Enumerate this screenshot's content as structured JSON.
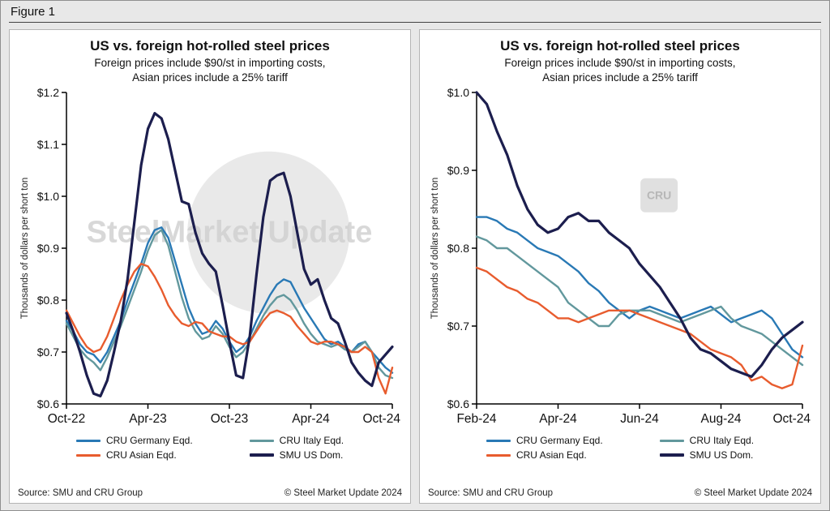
{
  "figure_label": "Figure 1",
  "panel_footer": {
    "source": "Source: SMU and CRU Group",
    "copyright": "© Steel Market Update 2024"
  },
  "watermarks": {
    "steel": "SteelMarket Update",
    "cru": "CRU"
  },
  "colors": {
    "germany": "#2979b5",
    "italy": "#62989d",
    "asian": "#e85c2e",
    "smu": "#1c1e4e",
    "axis": "#000000",
    "watermark": "#d7d7d7"
  },
  "chart_data": [
    {
      "type": "line",
      "title": "US vs. foreign hot-rolled steel prices",
      "subtitle": "Foreign prices include $90/st in importing costs,\nAsian prices include a 25% tariff",
      "ylabel": "Thousands of dollars per short ton",
      "xlim": [
        0,
        24
      ],
      "ylim": [
        0.6,
        1.2
      ],
      "grid": false,
      "legend_position": "bottom",
      "watermark": "steel-market",
      "yticks": [
        {
          "v": 0.6,
          "label": "$0.6"
        },
        {
          "v": 0.7,
          "label": "$0.7"
        },
        {
          "v": 0.8,
          "label": "$0.8"
        },
        {
          "v": 0.9,
          "label": "$0.9"
        },
        {
          "v": 1.0,
          "label": "$1.0"
        },
        {
          "v": 1.1,
          "label": "$1.1"
        },
        {
          "v": 1.2,
          "label": "$1.2"
        }
      ],
      "xticks": [
        {
          "v": 0,
          "label": "Oct-22"
        },
        {
          "v": 6,
          "label": "Apr-23"
        },
        {
          "v": 12,
          "label": "Oct-23"
        },
        {
          "v": 18,
          "label": "Apr-24"
        },
        {
          "v": 24,
          "label": "Oct-24"
        }
      ],
      "x": [
        0,
        0.5,
        1,
        1.5,
        2,
        2.5,
        3,
        3.5,
        4,
        4.5,
        5,
        5.5,
        6,
        6.5,
        7,
        7.5,
        8,
        8.5,
        9,
        9.5,
        10,
        10.5,
        11,
        11.5,
        12,
        12.5,
        13,
        13.5,
        14,
        14.5,
        15,
        15.5,
        16,
        16.5,
        17,
        17.5,
        18,
        18.5,
        19,
        19.5,
        20,
        20.5,
        21,
        21.5,
        22,
        22.5,
        23,
        23.5,
        24
      ],
      "series": [
        {
          "name": "CRU Germany Eqd.",
          "color": "germany",
          "width": 2.4,
          "values": [
            0.76,
            0.74,
            0.715,
            0.7,
            0.695,
            0.68,
            0.7,
            0.73,
            0.76,
            0.8,
            0.835,
            0.87,
            0.91,
            0.935,
            0.94,
            0.92,
            0.875,
            0.83,
            0.785,
            0.755,
            0.735,
            0.74,
            0.76,
            0.745,
            0.72,
            0.7,
            0.71,
            0.73,
            0.76,
            0.785,
            0.81,
            0.83,
            0.84,
            0.835,
            0.81,
            0.785,
            0.765,
            0.745,
            0.725,
            0.715,
            0.72,
            0.71,
            0.7,
            0.715,
            0.72,
            0.7,
            0.685,
            0.67,
            0.66
          ]
        },
        {
          "name": "CRU Italy Eqd.",
          "color": "italy",
          "width": 2.4,
          "values": [
            0.755,
            0.73,
            0.705,
            0.69,
            0.68,
            0.665,
            0.69,
            0.72,
            0.75,
            0.785,
            0.82,
            0.855,
            0.895,
            0.925,
            0.935,
            0.905,
            0.855,
            0.805,
            0.765,
            0.74,
            0.725,
            0.73,
            0.75,
            0.735,
            0.71,
            0.69,
            0.7,
            0.72,
            0.745,
            0.77,
            0.79,
            0.805,
            0.81,
            0.8,
            0.78,
            0.755,
            0.735,
            0.72,
            0.715,
            0.71,
            0.715,
            0.705,
            0.7,
            0.71,
            0.72,
            0.7,
            0.67,
            0.655,
            0.65
          ]
        },
        {
          "name": "CRU Asian Eqd.",
          "color": "asian",
          "width": 2.4,
          "values": [
            0.78,
            0.755,
            0.73,
            0.71,
            0.7,
            0.705,
            0.73,
            0.765,
            0.8,
            0.83,
            0.855,
            0.87,
            0.865,
            0.845,
            0.82,
            0.79,
            0.77,
            0.755,
            0.75,
            0.758,
            0.755,
            0.74,
            0.735,
            0.73,
            0.73,
            0.72,
            0.715,
            0.72,
            0.74,
            0.76,
            0.775,
            0.78,
            0.775,
            0.768,
            0.75,
            0.735,
            0.72,
            0.715,
            0.72,
            0.72,
            0.715,
            0.71,
            0.7,
            0.7,
            0.71,
            0.7,
            0.65,
            0.62,
            0.67
          ]
        },
        {
          "name": "SMU US Dom.",
          "color": "smu",
          "width": 3.2,
          "values": [
            0.775,
            0.74,
            0.7,
            0.655,
            0.62,
            0.615,
            0.645,
            0.7,
            0.76,
            0.84,
            0.95,
            1.06,
            1.13,
            1.16,
            1.15,
            1.11,
            1.05,
            0.99,
            0.985,
            0.93,
            0.89,
            0.87,
            0.855,
            0.79,
            0.72,
            0.655,
            0.65,
            0.73,
            0.85,
            0.96,
            1.03,
            1.04,
            1.045,
            1.0,
            0.93,
            0.86,
            0.83,
            0.84,
            0.8,
            0.765,
            0.755,
            0.72,
            0.68,
            0.66,
            0.645,
            0.635,
            0.68,
            0.695,
            0.71
          ]
        }
      ]
    },
    {
      "type": "line",
      "title": "US vs. foreign hot-rolled steel prices",
      "subtitle": "Foreign prices include $90/st in importing costs,\nAsian prices include a 25% tariff",
      "ylabel": "Thousands of dollars per short ton",
      "xlim": [
        0,
        8
      ],
      "ylim": [
        0.6,
        1.0
      ],
      "grid": false,
      "legend_position": "bottom",
      "watermark": "cru-box",
      "yticks": [
        {
          "v": 0.6,
          "label": "$0.6"
        },
        {
          "v": 0.7,
          "label": "$0.7"
        },
        {
          "v": 0.8,
          "label": "$0.8"
        },
        {
          "v": 0.9,
          "label": "$0.9"
        },
        {
          "v": 1.0,
          "label": "$1.0"
        }
      ],
      "xticks": [
        {
          "v": 0,
          "label": "Feb-24"
        },
        {
          "v": 2,
          "label": "Apr-24"
        },
        {
          "v": 4,
          "label": "Jun-24"
        },
        {
          "v": 6,
          "label": "Aug-24"
        },
        {
          "v": 8,
          "label": "Oct-24"
        }
      ],
      "x": [
        0,
        0.25,
        0.5,
        0.75,
        1,
        1.25,
        1.5,
        1.75,
        2,
        2.25,
        2.5,
        2.75,
        3,
        3.25,
        3.5,
        3.75,
        4,
        4.25,
        4.5,
        4.75,
        5,
        5.25,
        5.5,
        5.75,
        6,
        6.25,
        6.5,
        6.75,
        7,
        7.25,
        7.5,
        7.75,
        8
      ],
      "series": [
        {
          "name": "CRU Germany Eqd.",
          "color": "germany",
          "width": 2.4,
          "values": [
            0.84,
            0.84,
            0.835,
            0.825,
            0.82,
            0.81,
            0.8,
            0.795,
            0.79,
            0.78,
            0.77,
            0.755,
            0.745,
            0.73,
            0.72,
            0.71,
            0.72,
            0.725,
            0.72,
            0.715,
            0.71,
            0.715,
            0.72,
            0.725,
            0.715,
            0.705,
            0.71,
            0.715,
            0.72,
            0.71,
            0.69,
            0.67,
            0.66
          ]
        },
        {
          "name": "CRU Italy Eqd.",
          "color": "italy",
          "width": 2.4,
          "values": [
            0.815,
            0.81,
            0.8,
            0.8,
            0.79,
            0.78,
            0.77,
            0.76,
            0.75,
            0.73,
            0.72,
            0.71,
            0.7,
            0.7,
            0.715,
            0.72,
            0.72,
            0.72,
            0.715,
            0.71,
            0.705,
            0.71,
            0.715,
            0.72,
            0.725,
            0.71,
            0.7,
            0.695,
            0.69,
            0.68,
            0.67,
            0.66,
            0.65
          ]
        },
        {
          "name": "CRU Asian Eqd.",
          "color": "asian",
          "width": 2.4,
          "values": [
            0.775,
            0.77,
            0.76,
            0.75,
            0.745,
            0.735,
            0.73,
            0.72,
            0.71,
            0.71,
            0.705,
            0.71,
            0.715,
            0.72,
            0.72,
            0.72,
            0.715,
            0.71,
            0.705,
            0.7,
            0.695,
            0.69,
            0.68,
            0.67,
            0.665,
            0.66,
            0.65,
            0.63,
            0.635,
            0.625,
            0.62,
            0.625,
            0.675
          ]
        },
        {
          "name": "SMU US Dom.",
          "color": "smu",
          "width": 3.2,
          "values": [
            1.0,
            0.985,
            0.95,
            0.92,
            0.88,
            0.85,
            0.83,
            0.82,
            0.825,
            0.84,
            0.845,
            0.835,
            0.835,
            0.82,
            0.81,
            0.8,
            0.78,
            0.765,
            0.75,
            0.73,
            0.71,
            0.685,
            0.67,
            0.665,
            0.655,
            0.645,
            0.64,
            0.635,
            0.65,
            0.67,
            0.685,
            0.695,
            0.705
          ]
        }
      ]
    }
  ]
}
